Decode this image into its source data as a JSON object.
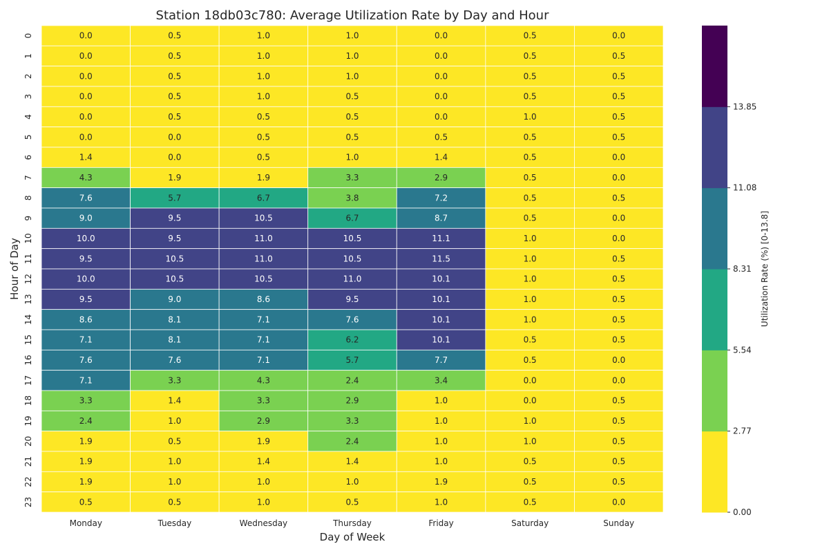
{
  "chart_data": {
    "type": "heatmap",
    "title": "Station 18db03c780: Average Utilization Rate by Day and Hour",
    "xlabel": "Day of Week",
    "ylabel": "Hour of Day",
    "x_categories": [
      "Monday",
      "Tuesday",
      "Wednesday",
      "Thursday",
      "Friday",
      "Saturday",
      "Sunday"
    ],
    "y_categories": [
      "0",
      "1",
      "2",
      "3",
      "4",
      "5",
      "6",
      "7",
      "8",
      "9",
      "10",
      "11",
      "12",
      "13",
      "14",
      "15",
      "16",
      "17",
      "18",
      "19",
      "20",
      "21",
      "22",
      "23"
    ],
    "values": [
      [
        0.0,
        0.5,
        1.0,
        1.0,
        0.0,
        0.5,
        0.0
      ],
      [
        0.0,
        0.5,
        1.0,
        1.0,
        0.0,
        0.5,
        0.5
      ],
      [
        0.0,
        0.5,
        1.0,
        1.0,
        0.0,
        0.5,
        0.5
      ],
      [
        0.0,
        0.5,
        1.0,
        0.5,
        0.0,
        0.5,
        0.5
      ],
      [
        0.0,
        0.5,
        0.5,
        0.5,
        0.0,
        1.0,
        0.5
      ],
      [
        0.0,
        0.0,
        0.5,
        0.5,
        0.5,
        0.5,
        0.5
      ],
      [
        1.4,
        0.0,
        0.5,
        1.0,
        1.4,
        0.5,
        0.0
      ],
      [
        4.3,
        1.9,
        1.9,
        3.3,
        2.9,
        0.5,
        0.0
      ],
      [
        7.6,
        5.7,
        6.7,
        3.8,
        7.2,
        0.5,
        0.5
      ],
      [
        9.0,
        9.5,
        10.5,
        6.7,
        8.7,
        0.5,
        0.0
      ],
      [
        10.0,
        9.5,
        11.0,
        10.5,
        11.1,
        1.0,
        0.0
      ],
      [
        9.5,
        10.5,
        11.0,
        10.5,
        11.5,
        1.0,
        0.5
      ],
      [
        10.0,
        10.5,
        10.5,
        11.0,
        10.1,
        1.0,
        0.5
      ],
      [
        9.5,
        9.0,
        8.6,
        9.5,
        10.1,
        1.0,
        0.5
      ],
      [
        8.6,
        8.1,
        7.1,
        7.6,
        10.1,
        1.0,
        0.5
      ],
      [
        7.1,
        8.1,
        7.1,
        6.2,
        10.1,
        0.5,
        0.5
      ],
      [
        7.6,
        7.6,
        7.1,
        5.7,
        7.7,
        0.5,
        0.0
      ],
      [
        7.1,
        3.3,
        4.3,
        2.4,
        3.4,
        0.0,
        0.0
      ],
      [
        3.3,
        1.4,
        3.3,
        2.9,
        1.0,
        0.0,
        0.5
      ],
      [
        2.4,
        1.0,
        2.9,
        3.3,
        1.0,
        1.0,
        0.5
      ],
      [
        1.9,
        0.5,
        1.9,
        2.4,
        1.0,
        1.0,
        0.5
      ],
      [
        1.9,
        1.0,
        1.4,
        1.4,
        1.0,
        0.5,
        0.5
      ],
      [
        1.9,
        1.0,
        1.0,
        1.0,
        1.9,
        0.5,
        0.5
      ],
      [
        0.5,
        0.5,
        1.0,
        0.5,
        1.0,
        0.5,
        0.0
      ]
    ],
    "colorbar": {
      "label": "Utilization Rate (%) [0-13.8]",
      "min": 0.0,
      "max": 13.85,
      "ticks": [
        "0.00",
        "2.77",
        "5.54",
        "8.31",
        "11.08",
        "13.85"
      ],
      "bins": 6,
      "colors": [
        "#fde725",
        "#7ad151",
        "#22a884",
        "#2a788e",
        "#414487",
        "#440154"
      ]
    },
    "grid": false,
    "legend": "none"
  }
}
